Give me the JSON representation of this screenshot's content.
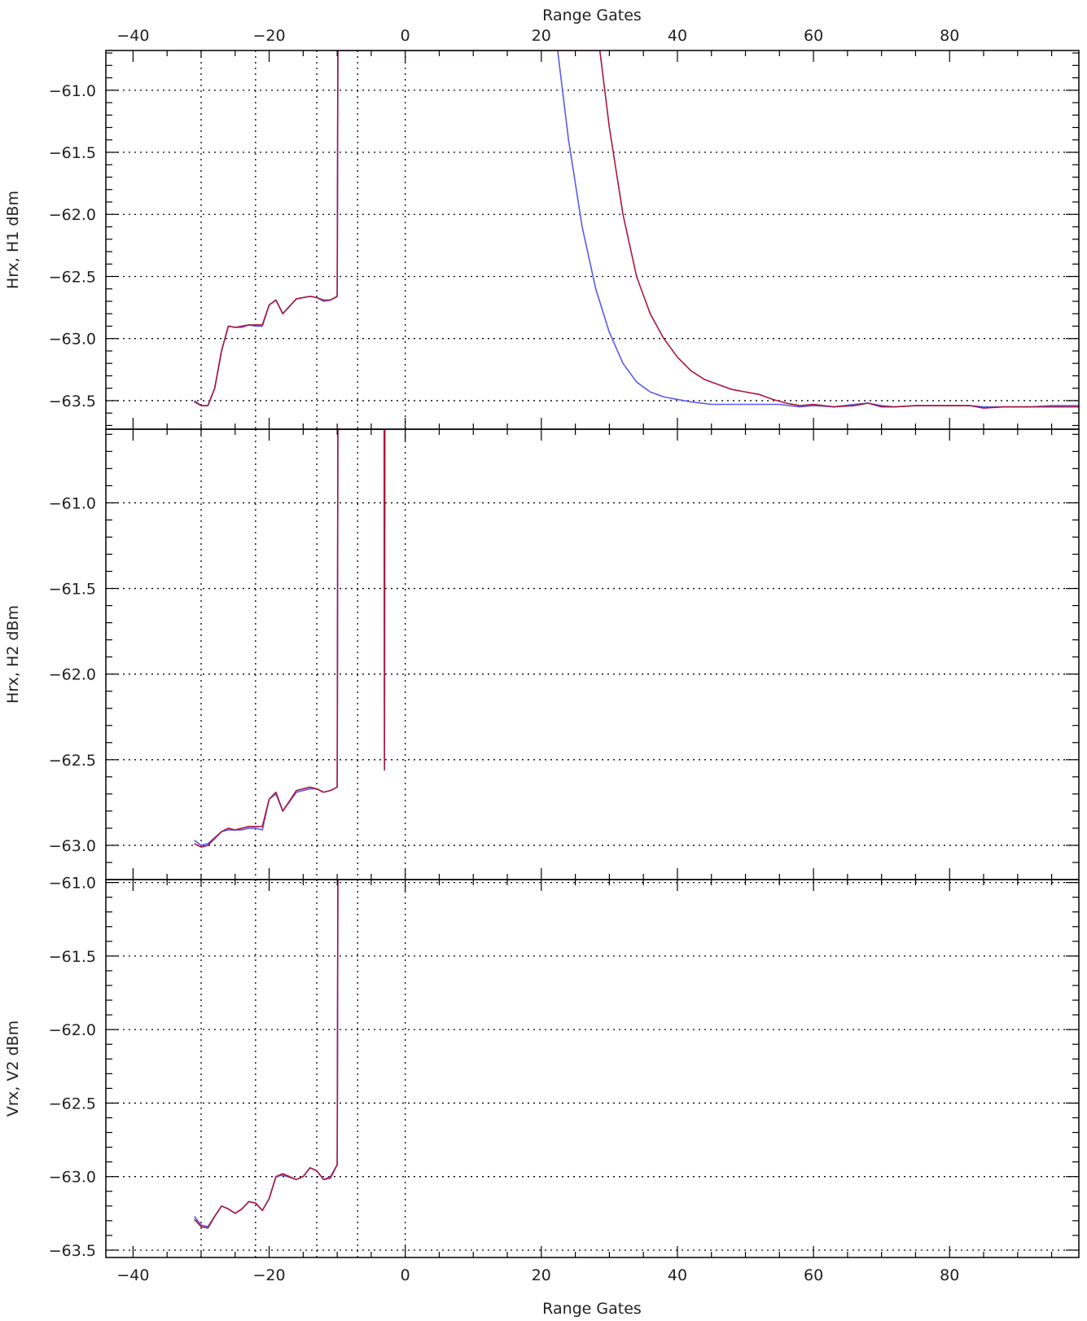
{
  "chart_data": {
    "type": "line",
    "x_axis": {
      "label": "Range Gates",
      "range": [
        -44,
        99
      ],
      "ticks": [
        -40,
        -20,
        0,
        20,
        40,
        60,
        80
      ],
      "tick_labels": [
        "−40",
        "−20",
        "0",
        "20",
        "40",
        "60",
        "80"
      ],
      "minor_step": 5,
      "vertical_gridlines": [
        -30,
        -22,
        -13,
        -7,
        0
      ]
    },
    "series_colors": [
      "#5a5aee",
      "#a8173e"
    ],
    "panels": [
      {
        "ylabel": "Hrx, H1 dBm",
        "ylim": [
          -63.73,
          -60.68
        ],
        "yticks": [
          -61.0,
          -61.5,
          -62.0,
          -62.5,
          -63.0,
          -63.5
        ],
        "ytick_labels": [
          "−61.0",
          "−61.5",
          "−62.0",
          "−62.5",
          "−63.0",
          "−63.5"
        ],
        "minor_step": 0.1,
        "series": [
          {
            "color": "#5a5aee",
            "points": [
              [
                -31,
                -63.5
              ],
              [
                -30,
                -63.54
              ],
              [
                -29,
                -63.54
              ],
              [
                -28,
                -63.4
              ],
              [
                -27,
                -63.1
              ],
              [
                -26,
                -62.9
              ],
              [
                -25,
                -62.91
              ],
              [
                -24,
                -62.91
              ],
              [
                -23,
                -62.89
              ],
              [
                -22,
                -62.9
              ],
              [
                -21,
                -62.9
              ],
              [
                -20,
                -62.73
              ],
              [
                -19,
                -62.69
              ],
              [
                -18,
                -62.8
              ],
              [
                -16,
                -62.68
              ],
              [
                -14,
                -62.66
              ],
              [
                -13,
                -62.67
              ],
              [
                -12,
                -62.7
              ],
              [
                -11,
                -62.69
              ],
              [
                -10,
                -62.66
              ],
              [
                -9.9,
                -60.68
              ],
              [
                22.4,
                -60.68
              ],
              [
                24,
                -61.4
              ],
              [
                26,
                -62.1
              ],
              [
                28,
                -62.6
              ],
              [
                30,
                -62.95
              ],
              [
                32,
                -63.2
              ],
              [
                34,
                -63.35
              ],
              [
                36,
                -63.43
              ],
              [
                38,
                -63.47
              ],
              [
                40,
                -63.49
              ],
              [
                42,
                -63.51
              ],
              [
                45,
                -63.53
              ],
              [
                50,
                -63.53
              ],
              [
                55,
                -63.53
              ],
              [
                58,
                -63.55
              ],
              [
                60,
                -63.54
              ],
              [
                63,
                -63.55
              ],
              [
                66,
                -63.53
              ],
              [
                68,
                -63.52
              ],
              [
                70,
                -63.54
              ],
              [
                72,
                -63.55
              ],
              [
                75,
                -63.54
              ],
              [
                78,
                -63.54
              ],
              [
                80,
                -63.54
              ],
              [
                83,
                -63.54
              ],
              [
                85,
                -63.55
              ],
              [
                88,
                -63.55
              ],
              [
                92,
                -63.55
              ],
              [
                95,
                -63.54
              ],
              [
                99,
                -63.54
              ]
            ]
          },
          {
            "color": "#a8173e",
            "points": [
              [
                -31,
                -63.51
              ],
              [
                -30,
                -63.54
              ],
              [
                -29,
                -63.54
              ],
              [
                -28,
                -63.4
              ],
              [
                -27,
                -63.1
              ],
              [
                -26,
                -62.9
              ],
              [
                -25,
                -62.91
              ],
              [
                -24,
                -62.9
              ],
              [
                -23,
                -62.89
              ],
              [
                -22,
                -62.89
              ],
              [
                -21,
                -62.89
              ],
              [
                -20,
                -62.73
              ],
              [
                -19,
                -62.69
              ],
              [
                -18,
                -62.8
              ],
              [
                -16,
                -62.68
              ],
              [
                -14,
                -62.66
              ],
              [
                -13,
                -62.67
              ],
              [
                -12,
                -62.69
              ],
              [
                -11,
                -62.69
              ],
              [
                -10,
                -62.66
              ],
              [
                -9.9,
                -60.68
              ],
              [
                28.6,
                -60.68
              ],
              [
                30,
                -61.3
              ],
              [
                32,
                -62.0
              ],
              [
                34,
                -62.5
              ],
              [
                36,
                -62.8
              ],
              [
                38,
                -63.0
              ],
              [
                40,
                -63.15
              ],
              [
                42,
                -63.26
              ],
              [
                44,
                -63.33
              ],
              [
                46,
                -63.37
              ],
              [
                48,
                -63.41
              ],
              [
                50,
                -63.43
              ],
              [
                52,
                -63.45
              ],
              [
                54,
                -63.49
              ],
              [
                56,
                -63.52
              ],
              [
                58,
                -63.54
              ],
              [
                60,
                -63.53
              ],
              [
                63,
                -63.55
              ],
              [
                66,
                -63.54
              ],
              [
                68,
                -63.52
              ],
              [
                70,
                -63.55
              ],
              [
                72,
                -63.55
              ],
              [
                75,
                -63.54
              ],
              [
                78,
                -63.54
              ],
              [
                80,
                -63.54
              ],
              [
                83,
                -63.54
              ],
              [
                85,
                -63.56
              ],
              [
                88,
                -63.55
              ],
              [
                92,
                -63.55
              ],
              [
                95,
                -63.55
              ],
              [
                99,
                -63.55
              ]
            ]
          }
        ]
      },
      {
        "ylabel": "Hrx, H2 dBm",
        "ylim": [
          -63.2,
          -60.57
        ],
        "yticks": [
          -61.0,
          -61.5,
          -62.0,
          -62.5,
          -63.0
        ],
        "ytick_labels": [
          "−61.0",
          "−61.5",
          "−62.0",
          "−62.5",
          "−63.0"
        ],
        "minor_step": 0.1,
        "series": [
          {
            "color": "#5a5aee",
            "points": [
              [
                -31,
                -62.97
              ],
              [
                -30,
                -63.0
              ],
              [
                -29,
                -62.99
              ],
              [
                -27,
                -62.92
              ],
              [
                -26,
                -62.91
              ],
              [
                -25,
                -62.91
              ],
              [
                -24,
                -62.91
              ],
              [
                -23,
                -62.9
              ],
              [
                -22,
                -62.9
              ],
              [
                -21,
                -62.91
              ],
              [
                -20,
                -62.73
              ],
              [
                -19,
                -62.7
              ],
              [
                -18,
                -62.8
              ],
              [
                -16,
                -62.69
              ],
              [
                -14,
                -62.67
              ],
              [
                -13,
                -62.67
              ],
              [
                -12,
                -62.69
              ],
              [
                -11,
                -62.68
              ],
              [
                -10,
                -62.66
              ],
              [
                -9.9,
                -60.57
              ],
              [
                -3.1,
                -60.57
              ],
              [
                -3.05,
                -62.53
              ],
              [
                -3.0,
                -60.57
              ]
            ]
          },
          {
            "color": "#a8173e",
            "points": [
              [
                -31,
                -62.99
              ],
              [
                -30,
                -63.01
              ],
              [
                -29,
                -63.0
              ],
              [
                -27,
                -62.92
              ],
              [
                -26,
                -62.9
              ],
              [
                -25,
                -62.91
              ],
              [
                -24,
                -62.9
              ],
              [
                -23,
                -62.89
              ],
              [
                -22,
                -62.89
              ],
              [
                -21,
                -62.89
              ],
              [
                -20,
                -62.73
              ],
              [
                -19,
                -62.69
              ],
              [
                -18,
                -62.8
              ],
              [
                -16,
                -62.68
              ],
              [
                -14,
                -62.66
              ],
              [
                -13,
                -62.67
              ],
              [
                -12,
                -62.69
              ],
              [
                -11,
                -62.68
              ],
              [
                -10,
                -62.66
              ],
              [
                -9.9,
                -60.57
              ],
              [
                -3.1,
                -60.57
              ],
              [
                -3.05,
                -62.56
              ],
              [
                -3.0,
                -60.57
              ]
            ]
          }
        ]
      },
      {
        "ylabel": "Vrx, V2 dBm",
        "ylim": [
          -63.55,
          -60.98
        ],
        "yticks": [
          -61.0,
          -61.5,
          -62.0,
          -62.5,
          -63.0,
          -63.5
        ],
        "ytick_labels": [
          "−61.0",
          "−61.5",
          "−62.0",
          "−62.5",
          "−63.0",
          "−63.5"
        ],
        "minor_step": 0.1,
        "series": [
          {
            "color": "#5a5aee",
            "points": [
              [
                -31,
                -63.27
              ],
              [
                -30,
                -63.33
              ],
              [
                -29,
                -63.34
              ],
              [
                -28,
                -63.27
              ],
              [
                -27,
                -63.2
              ],
              [
                -26,
                -63.22
              ],
              [
                -25,
                -63.25
              ],
              [
                -24,
                -63.22
              ],
              [
                -23,
                -63.17
              ],
              [
                -22,
                -63.18
              ],
              [
                -21,
                -63.23
              ],
              [
                -20,
                -63.15
              ],
              [
                -19,
                -63.0
              ],
              [
                -18,
                -62.99
              ],
              [
                -16,
                -63.02
              ],
              [
                -15,
                -63.0
              ],
              [
                -14,
                -62.94
              ],
              [
                -13,
                -62.96
              ],
              [
                -12,
                -63.02
              ],
              [
                -11,
                -63.0
              ],
              [
                -10,
                -62.92
              ],
              [
                -9.9,
                -60.98
              ]
            ]
          },
          {
            "color": "#a8173e",
            "points": [
              [
                -31,
                -63.29
              ],
              [
                -30,
                -63.34
              ],
              [
                -29,
                -63.35
              ],
              [
                -28,
                -63.27
              ],
              [
                -27,
                -63.2
              ],
              [
                -26,
                -63.22
              ],
              [
                -25,
                -63.25
              ],
              [
                -24,
                -63.22
              ],
              [
                -23,
                -63.17
              ],
              [
                -22,
                -63.18
              ],
              [
                -21,
                -63.23
              ],
              [
                -20,
                -63.15
              ],
              [
                -19,
                -63.0
              ],
              [
                -18,
                -62.98
              ],
              [
                -16,
                -63.02
              ],
              [
                -15,
                -63.0
              ],
              [
                -14,
                -62.94
              ],
              [
                -13,
                -62.96
              ],
              [
                -12,
                -63.02
              ],
              [
                -11,
                -63.01
              ],
              [
                -10,
                -62.92
              ],
              [
                -9.9,
                -60.98
              ]
            ]
          }
        ]
      }
    ]
  }
}
